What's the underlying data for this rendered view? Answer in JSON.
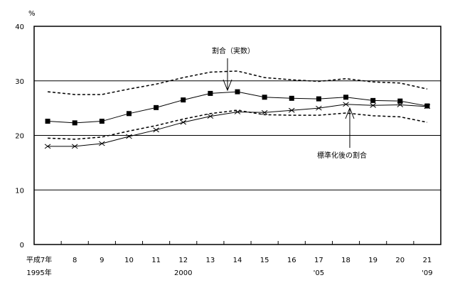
{
  "chart_data": {
    "type": "line",
    "unit_label": "%",
    "ylim": [
      0,
      40
    ],
    "yticks": [
      0,
      10,
      20,
      30,
      40
    ],
    "grid": true,
    "categories": [
      "平成7年",
      "8",
      "9",
      "10",
      "11",
      "12",
      "13",
      "14",
      "15",
      "16",
      "17",
      "18",
      "19",
      "20",
      "21"
    ],
    "western_years": [
      {
        "index": 0,
        "label": "1995年"
      },
      {
        "index": 5,
        "label": "2000"
      },
      {
        "index": 10,
        "label": "'05"
      },
      {
        "index": 14,
        "label": "'09"
      }
    ],
    "series": [
      {
        "name": "割合（実数）",
        "style": "solid-square",
        "values": [
          22.6,
          22.3,
          22.6,
          24.0,
          25.1,
          26.5,
          27.7,
          28.0,
          27.0,
          26.8,
          26.7,
          27.0,
          26.4,
          26.3,
          25.4
        ]
      },
      {
        "name": "標準化後の割合",
        "style": "solid-x",
        "values": [
          18.0,
          18.0,
          18.5,
          19.8,
          21.0,
          22.4,
          23.5,
          24.3,
          24.2,
          24.6,
          25.0,
          25.7,
          25.5,
          25.6,
          25.3
        ]
      },
      {
        "name": "upper-bound",
        "style": "dashed",
        "values": [
          28.0,
          27.5,
          27.5,
          28.5,
          29.4,
          30.6,
          31.6,
          31.8,
          30.6,
          30.2,
          29.9,
          30.4,
          29.8,
          29.6,
          28.5
        ]
      },
      {
        "name": "lower-bound",
        "style": "dashed",
        "values": [
          19.5,
          19.3,
          19.7,
          20.8,
          21.8,
          23.0,
          24.0,
          24.6,
          23.8,
          23.7,
          23.7,
          24.1,
          23.6,
          23.4,
          22.4
        ]
      }
    ],
    "annotations": [
      {
        "text": "割合（実数）",
        "series": 0,
        "index": 7
      },
      {
        "text": "標準化後の割合",
        "series": 1,
        "index": 11
      }
    ]
  }
}
